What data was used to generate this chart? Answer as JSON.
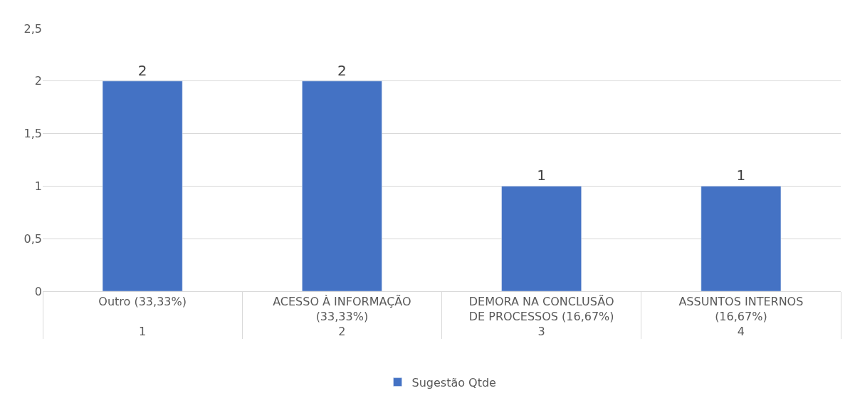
{
  "chart_data": {
    "type": "bar",
    "categories": [
      "Outro (33,33%)\n1",
      "ACESSO À INFORMAÇÃO\n(33,33%)\n2",
      "DEMORA NA CONCLUSÃO\nDE PROCESSOS (16,67%)\n3",
      "ASSUNTOS INTERNOS\n(16,67%)\n4"
    ],
    "series": [
      {
        "name": "Sugestão Qtde",
        "color": "#4472c4",
        "values": [
          2,
          2,
          1,
          1
        ]
      }
    ],
    "ylim": [
      0,
      2.5
    ],
    "yticks": [
      0,
      {
        "value": 0.5,
        "label": "0,5"
      },
      1,
      {
        "value": 1.5,
        "label": "1,5"
      },
      2,
      {
        "value": 2.5,
        "label": "2,5"
      }
    ],
    "data_labels": true,
    "grid": "y",
    "legend": "bottom"
  }
}
